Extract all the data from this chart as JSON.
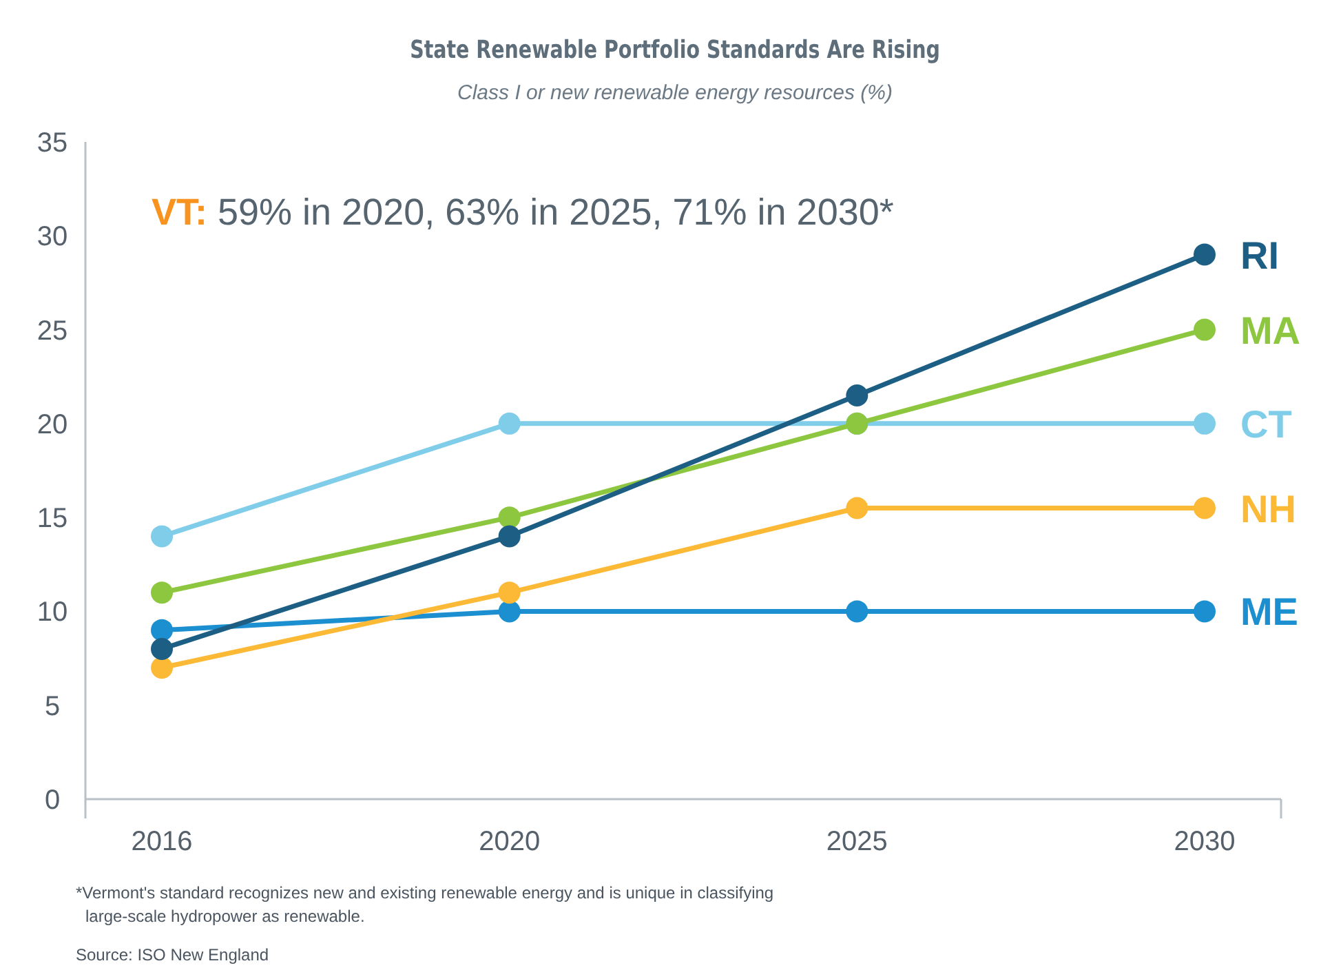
{
  "chart_data": {
    "type": "line",
    "title": "State Renewable Portfolio Standards Are Rising",
    "subtitle": "Class I or new renewable energy resources (%)",
    "categories": [
      "2016",
      "2020",
      "2025",
      "2030"
    ],
    "ylim": [
      0,
      35
    ],
    "yticks": [
      0,
      5,
      10,
      15,
      20,
      25,
      30,
      35
    ],
    "grid": false,
    "marker": "circle",
    "series": [
      {
        "name": "RI",
        "color": "#1d5f84",
        "values": [
          8,
          14,
          21.5,
          29
        ]
      },
      {
        "name": "MA",
        "color": "#8dc63f",
        "values": [
          11,
          15,
          20,
          25
        ]
      },
      {
        "name": "CT",
        "color": "#80cdea",
        "values": [
          14,
          20,
          20,
          20
        ]
      },
      {
        "name": "NH",
        "color": "#fbb935",
        "values": [
          7,
          11,
          15.5,
          15.5
        ]
      },
      {
        "name": "ME",
        "color": "#1b8fd0",
        "values": [
          9,
          10,
          10,
          10
        ]
      }
    ],
    "annotations": [
      "VT: 59% in 2020, 63% in 2025, 71% in 2030*",
      "*Vermont's standard recognizes new and existing renewable energy and is unique in classifying large-scale hydropower as renewable.",
      "Source: ISO New England"
    ]
  }
}
